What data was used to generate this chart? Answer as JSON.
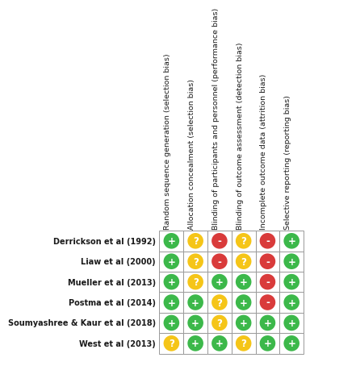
{
  "studies": [
    "Derrickson et al (1992)",
    "Liaw et al (2000)",
    "Mueller et al (2013)",
    "Postma et al (2014)",
    "Soumyashree & Kaur et al (2018)",
    "West et al (2013)"
  ],
  "columns": [
    "Random sequence generation (selection bias)",
    "Allocation concealment (selection bias)",
    "Blinding of participants and personnel (performance bias)",
    "Blinding of outcome assessment (detection bias)",
    "Incomplete outcome data (attrition bias)",
    "Selective reporting (reporting bias)"
  ],
  "judgments": [
    [
      "+",
      "?",
      "-",
      "?",
      "-",
      "+"
    ],
    [
      "+",
      "?",
      "-",
      "?",
      "-",
      "+"
    ],
    [
      "+",
      "?",
      "+",
      "+",
      "-",
      "+"
    ],
    [
      "+",
      "+",
      "?",
      "+",
      "-",
      "+"
    ],
    [
      "+",
      "+",
      "?",
      "+",
      "+",
      "+"
    ],
    [
      "?",
      "+",
      "+",
      "?",
      "+",
      "+"
    ]
  ],
  "colors": {
    "+": "#3cb84a",
    "?": "#f5c518",
    "-": "#d93b3b"
  },
  "bg_color": "#ffffff",
  "grid_color": "#999999",
  "text_color": "#1a1a1a",
  "study_label_fontsize": 7.0,
  "col_label_fontsize": 6.8
}
